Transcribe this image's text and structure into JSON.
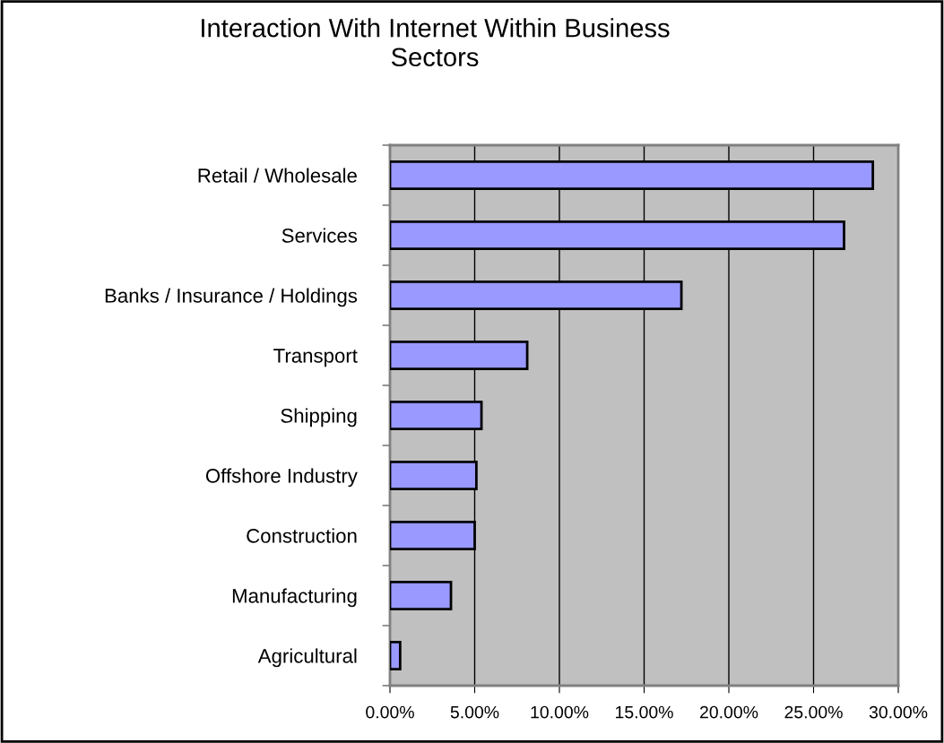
{
  "chart_data": {
    "type": "bar",
    "orientation": "horizontal",
    "title": "Interaction With Internet Within Business\nSectors",
    "categories": [
      "Retail / Wholesale",
      "Services",
      "Banks / Insurance / Holdings",
      "Transport",
      "Shipping",
      "Offshore Industry",
      "Construction",
      "Manufacturing",
      "Agricultural"
    ],
    "values": [
      28.5,
      26.8,
      17.2,
      8.1,
      5.4,
      5.1,
      5.0,
      3.6,
      0.6
    ],
    "color": "#9999ff",
    "xlim": [
      0,
      30
    ],
    "xticks": [
      {
        "value": 0,
        "label": "0.00%"
      },
      {
        "value": 5,
        "label": "5.00%"
      },
      {
        "value": 10,
        "label": "10.00%"
      },
      {
        "value": 15,
        "label": "15.00%"
      },
      {
        "value": 20,
        "label": "20.00%"
      },
      {
        "value": 25,
        "label": "25.00%"
      },
      {
        "value": 30,
        "label": "30.00%"
      }
    ],
    "grid": "x"
  }
}
